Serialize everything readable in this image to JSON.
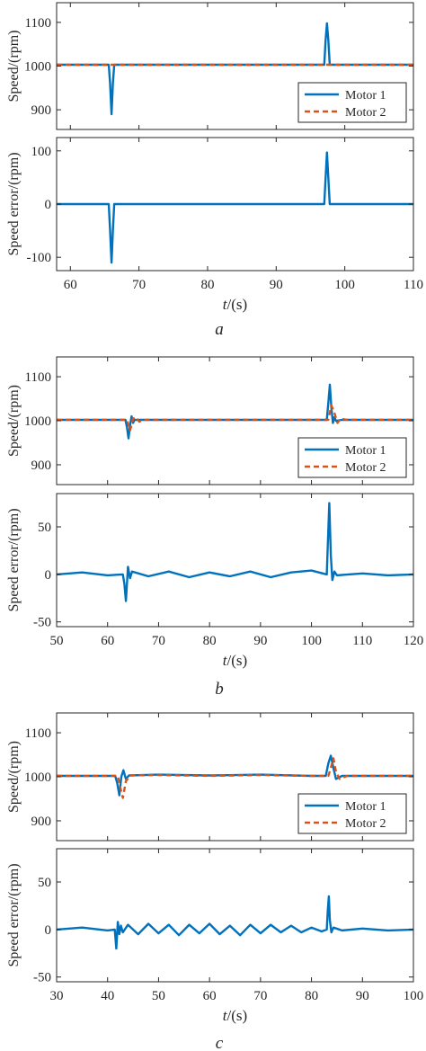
{
  "colors": {
    "motor1": "#0072BD",
    "motor2": "#D95319",
    "axis": "#262626"
  },
  "chart_data": [
    {
      "type": "line",
      "panel": "a-top",
      "ylabel": "Speed/(rpm)",
      "xlim": [
        58,
        110
      ],
      "ylim": [
        855,
        1145
      ],
      "xticks": [],
      "yticks": [
        900,
        1000,
        1100
      ],
      "legend": {
        "placement": "bottom-right",
        "entries": [
          "Motor 1",
          "Motor 2"
        ]
      },
      "series": [
        {
          "name": "Motor 1",
          "style": "solid",
          "x": [
            58,
            65.6,
            65.8,
            66.0,
            66.2,
            66.4,
            67,
            97.0,
            97.2,
            97.4,
            97.6,
            97.8,
            110
          ],
          "y": [
            1003,
            1003,
            960,
            890,
            960,
            1003,
            1003,
            1003,
            1060,
            1098,
            1060,
            1003,
            1003
          ]
        },
        {
          "name": "Motor 2",
          "style": "dashed",
          "x": [
            58,
            110
          ],
          "y": [
            1003,
            1003
          ]
        }
      ]
    },
    {
      "type": "line",
      "panel": "a-bottom",
      "ylabel": "Speed error/(rpm)",
      "xlabel": "t/(s)",
      "xlim": [
        58,
        110
      ],
      "ylim": [
        -125,
        125
      ],
      "xticks": [
        60,
        70,
        80,
        90,
        100,
        110
      ],
      "yticks": [
        -100,
        0,
        100
      ],
      "series": [
        {
          "name": "Motor 1",
          "style": "solid",
          "x": [
            58,
            65.6,
            65.8,
            66.0,
            66.2,
            66.4,
            67,
            97.0,
            97.2,
            97.4,
            97.6,
            97.8,
            110
          ],
          "y": [
            0,
            0,
            -50,
            -110,
            -50,
            0,
            0,
            0,
            50,
            97,
            50,
            0,
            0
          ]
        }
      ]
    },
    {
      "type": "line",
      "panel": "b-top",
      "ylabel": "Speed/(rpm)",
      "xlim": [
        50,
        120
      ],
      "ylim": [
        855,
        1145
      ],
      "xticks": [],
      "yticks": [
        900,
        1000,
        1100
      ],
      "legend": {
        "placement": "bottom-right",
        "entries": [
          "Motor 1",
          "Motor 2"
        ]
      },
      "series": [
        {
          "name": "Motor 1",
          "style": "solid",
          "x": [
            50,
            63.5,
            63.8,
            64.1,
            64.4,
            64.7,
            65.0,
            65.3,
            66,
            103.0,
            103.3,
            103.6,
            103.9,
            104.2,
            104.5,
            104.8,
            106,
            120
          ],
          "y": [
            1002,
            1002,
            985,
            960,
            990,
            1010,
            995,
            1002,
            1002,
            1002,
            1040,
            1082,
            1030,
            995,
            1008,
            1000,
            1002,
            1002
          ]
        },
        {
          "name": "Motor 2",
          "style": "dashed",
          "x": [
            50,
            63.8,
            64.4,
            65.0,
            65.6,
            66.2,
            67,
            103.3,
            103.9,
            104.5,
            105.1,
            105.7,
            107,
            120
          ],
          "y": [
            1002,
            1002,
            978,
            1005,
            1008,
            998,
            1002,
            1002,
            1035,
            1018,
            995,
            1005,
            1002,
            1002
          ]
        }
      ]
    },
    {
      "type": "line",
      "panel": "b-bottom",
      "ylabel": "Speed error/(rpm)",
      "xlabel": "t/(s)",
      "xlim": [
        50,
        120
      ],
      "ylim": [
        -55,
        85
      ],
      "xticks": [
        50,
        60,
        70,
        80,
        90,
        100,
        110,
        120
      ],
      "yticks": [
        -50,
        0,
        50
      ],
      "series": [
        {
          "name": "Motor 1",
          "style": "solid",
          "x": [
            50,
            55,
            60,
            63.0,
            63.3,
            63.6,
            64.0,
            64.4,
            64.8,
            68,
            72,
            76,
            80,
            84,
            88,
            92,
            96,
            100,
            103.0,
            103.2,
            103.5,
            103.8,
            104.1,
            104.5,
            105,
            110,
            115,
            120
          ],
          "y": [
            0,
            2,
            -1,
            0,
            -10,
            -28,
            8,
            -4,
            3,
            -2,
            3,
            -3,
            2,
            -2,
            3,
            -3,
            2,
            4,
            0,
            30,
            75,
            20,
            -6,
            3,
            -1,
            1,
            -1,
            0
          ]
        }
      ]
    },
    {
      "type": "line",
      "panel": "c-top",
      "ylabel": "Speed/(rpm)",
      "xlim": [
        30,
        100
      ],
      "ylim": [
        855,
        1145
      ],
      "xticks": [],
      "yticks": [
        900,
        1000,
        1100
      ],
      "legend": {
        "placement": "bottom-right",
        "entries": [
          "Motor 1",
          "Motor 2"
        ]
      },
      "series": [
        {
          "name": "Motor 1",
          "style": "solid",
          "x": [
            30,
            41.5,
            41.9,
            42.3,
            42.7,
            43.1,
            43.6,
            44.2,
            50,
            60,
            70,
            80,
            82.8,
            83.3,
            83.8,
            84.3,
            84.8,
            86,
            100
          ],
          "y": [
            1002,
            1002,
            985,
            958,
            1000,
            1015,
            995,
            1003,
            1005,
            1003,
            1005,
            1002,
            1002,
            1030,
            1048,
            1020,
            995,
            1002,
            1002
          ]
        },
        {
          "name": "Motor 2",
          "style": "dashed",
          "x": [
            30,
            42.0,
            42.5,
            43.0,
            43.6,
            44.4,
            50,
            60,
            70,
            80,
            83.3,
            83.8,
            84.3,
            84.8,
            85.5,
            87,
            100
          ],
          "y": [
            1002,
            1002,
            975,
            952,
            990,
            1003,
            1004,
            1002,
            1004,
            1002,
            1002,
            1020,
            1042,
            1012,
            995,
            1002,
            1002
          ]
        }
      ]
    },
    {
      "type": "line",
      "panel": "c-bottom",
      "ylabel": "Speed error/(rpm)",
      "xlabel": "t/(s)",
      "xlim": [
        30,
        100
      ],
      "ylim": [
        -55,
        85
      ],
      "xticks": [
        30,
        40,
        50,
        60,
        70,
        80,
        90,
        100
      ],
      "yticks": [
        -50,
        0,
        50
      ],
      "series": [
        {
          "name": "Motor 1",
          "style": "solid",
          "x": [
            30,
            35,
            40,
            41.4,
            41.7,
            42.0,
            42.3,
            42.6,
            43.0,
            44,
            46,
            48,
            50,
            52,
            54,
            56,
            58,
            60,
            62,
            64,
            66,
            68,
            70,
            72,
            74,
            76,
            78,
            80,
            82,
            83.0,
            83.2,
            83.4,
            83.6,
            83.9,
            84.3,
            86,
            90,
            95,
            100
          ],
          "y": [
            0,
            2,
            -1,
            0,
            -20,
            8,
            -5,
            4,
            -3,
            5,
            -5,
            6,
            -4,
            5,
            -6,
            5,
            -4,
            6,
            -5,
            4,
            -6,
            5,
            -4,
            5,
            -3,
            4,
            -3,
            2,
            -2,
            0,
            20,
            35,
            10,
            -3,
            2,
            -1,
            1,
            -1,
            0
          ]
        }
      ]
    }
  ],
  "captions": [
    "a",
    "b",
    "c"
  ]
}
